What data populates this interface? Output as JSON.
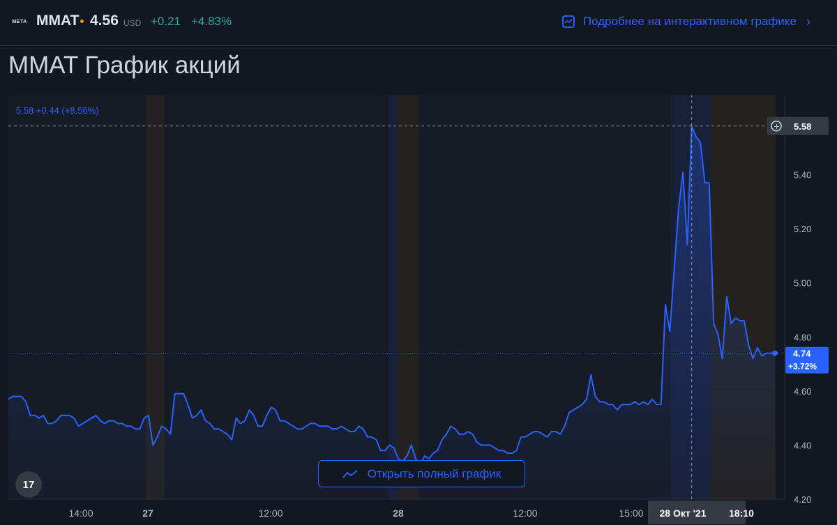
{
  "header": {
    "logo_text": "META",
    "ticker": "MMAT",
    "price": "4.56",
    "currency": "USD",
    "change": "+0.21",
    "change_pct": "+4.83%",
    "more_link": "Подробнее на интерактивном графике"
  },
  "page_title": "MMAT График акций",
  "open_full_chart": "Открыть полный график",
  "tv_logo": "17",
  "colors": {
    "line": "#2962ff",
    "positive": "#26a69a",
    "background": "#131722",
    "premarket_band": "#2a2520",
    "highlight_band": "#1b2440"
  },
  "chart_data": {
    "type": "area",
    "legend_text": "5.58 +0.44 (+8.56%)",
    "ylim": [
      4.2,
      5.68
    ],
    "y_ticks": [
      "4.20",
      "4.40",
      "4.60",
      "4.80",
      "5.00",
      "5.20",
      "5.40"
    ],
    "x_ticks": [
      "14:00",
      "27",
      "12:00",
      "28",
      "12:00",
      "15:00",
      "28 Окт '21",
      "18:10"
    ],
    "crosshair_price": "5.58",
    "last_price": "4.74",
    "last_change": "+3.72%",
    "values": [
      4.57,
      4.58,
      4.58,
      4.58,
      4.56,
      4.51,
      4.51,
      4.5,
      4.51,
      4.48,
      4.48,
      4.49,
      4.51,
      4.51,
      4.51,
      4.5,
      4.47,
      4.48,
      4.49,
      4.5,
      4.51,
      4.49,
      4.48,
      4.49,
      4.49,
      4.48,
      4.48,
      4.47,
      4.47,
      4.46,
      4.46,
      4.5,
      4.51,
      4.4,
      4.43,
      4.47,
      4.46,
      4.44,
      4.59,
      4.59,
      4.59,
      4.55,
      4.5,
      4.51,
      4.53,
      4.49,
      4.48,
      4.46,
      4.46,
      4.45,
      4.44,
      4.42,
      4.5,
      4.48,
      4.49,
      4.53,
      4.51,
      4.47,
      4.47,
      4.51,
      4.54,
      4.53,
      4.49,
      4.49,
      4.48,
      4.47,
      4.46,
      4.46,
      4.47,
      4.48,
      4.48,
      4.47,
      4.47,
      4.47,
      4.46,
      4.46,
      4.47,
      4.46,
      4.45,
      4.45,
      4.47,
      4.46,
      4.43,
      4.43,
      4.42,
      4.38,
      4.38,
      4.4,
      4.39,
      4.35,
      4.34,
      4.36,
      4.4,
      4.35,
      4.32,
      4.36,
      4.35,
      4.37,
      4.38,
      4.42,
      4.44,
      4.47,
      4.46,
      4.44,
      4.44,
      4.45,
      4.44,
      4.41,
      4.4,
      4.4,
      4.4,
      4.39,
      4.38,
      4.38,
      4.37,
      4.37,
      4.38,
      4.43,
      4.43,
      4.44,
      4.45,
      4.45,
      4.44,
      4.43,
      4.45,
      4.45,
      4.44,
      4.47,
      4.52,
      4.53,
      4.54,
      4.55,
      4.57,
      4.66,
      4.58,
      4.56,
      4.56,
      4.55,
      4.55,
      4.53,
      4.55,
      4.55,
      4.55,
      4.56,
      4.55,
      4.56,
      4.55,
      4.57,
      4.55,
      4.55,
      4.92,
      4.82,
      5.05,
      5.27,
      5.41,
      5.14,
      5.58,
      5.54,
      5.52,
      5.37,
      5.37,
      4.85,
      4.81,
      4.72,
      4.95,
      4.85,
      4.87,
      4.86,
      4.86,
      4.77,
      4.72,
      4.76,
      4.73,
      4.74,
      4.74,
      4.74
    ]
  }
}
